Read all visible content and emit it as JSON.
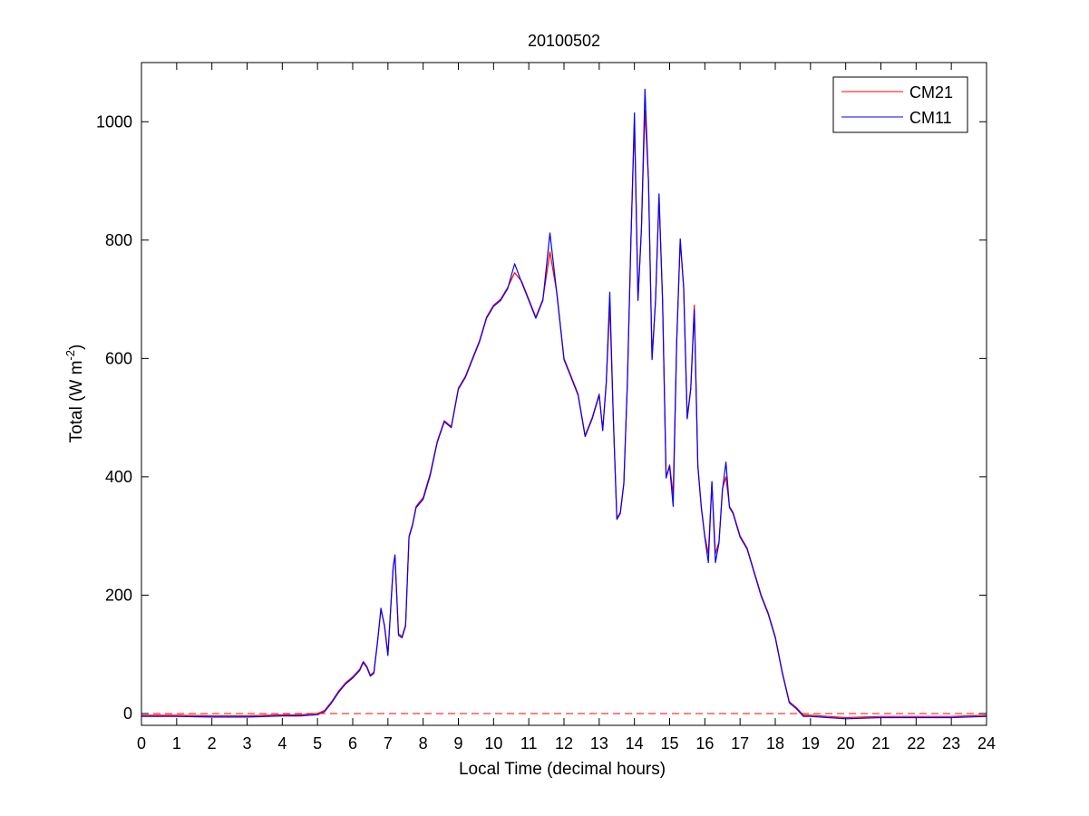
{
  "chart_data": {
    "type": "line",
    "title": "20100502",
    "xlabel": "Local Time (decimal hours)",
    "ylabel": {
      "base": "Total (W m",
      "sup": "-2",
      "close": ")"
    },
    "xlim": [
      0,
      24
    ],
    "ylim": [
      -20,
      1100
    ],
    "xticks": [
      "0",
      "1",
      "2",
      "3",
      "4",
      "5",
      "6",
      "7",
      "8",
      "9",
      "10",
      "11",
      "12",
      "13",
      "14",
      "15",
      "16",
      "17",
      "18",
      "19",
      "20",
      "21",
      "22",
      "23",
      "24"
    ],
    "yticks": [
      "0",
      "200",
      "400",
      "600",
      "800",
      "1000"
    ],
    "grid": false,
    "legend": {
      "position": "top-right",
      "entries": [
        "CM21",
        "CM11"
      ]
    },
    "reference_line": {
      "y": 0,
      "style": "dashed",
      "color": "#ff0000"
    },
    "series": [
      {
        "name": "CM21",
        "color": "#ff0000",
        "x": [
          0,
          1,
          2,
          3,
          4,
          4.5,
          5,
          5.2,
          5.4,
          5.6,
          5.8,
          6,
          6.2,
          6.3,
          6.4,
          6.5,
          6.6,
          6.7,
          6.8,
          6.9,
          7,
          7.1,
          7.15,
          7.2,
          7.3,
          7.4,
          7.5,
          7.6,
          7.7,
          7.8,
          8,
          8.2,
          8.4,
          8.6,
          8.8,
          9,
          9.2,
          9.4,
          9.6,
          9.8,
          10,
          10.2,
          10.4,
          10.6,
          10.8,
          11,
          11.2,
          11.4,
          11.6,
          11.8,
          12,
          12.2,
          12.4,
          12.6,
          12.8,
          13,
          13.1,
          13.2,
          13.3,
          13.4,
          13.5,
          13.6,
          13.7,
          13.8,
          13.9,
          14,
          14.1,
          14.2,
          14.3,
          14.4,
          14.5,
          14.6,
          14.7,
          14.8,
          14.9,
          15,
          15.1,
          15.2,
          15.3,
          15.4,
          15.5,
          15.6,
          15.7,
          15.8,
          15.9,
          16,
          16.1,
          16.2,
          16.3,
          16.4,
          16.5,
          16.6,
          16.7,
          16.8,
          17,
          17.2,
          17.4,
          17.6,
          17.8,
          18,
          18.2,
          18.4,
          18.6,
          18.8,
          19,
          19.5,
          20,
          21,
          22,
          23,
          24
        ],
        "y": [
          -3,
          -3,
          -4,
          -4,
          -2,
          -2,
          0,
          5,
          20,
          38,
          52,
          62,
          75,
          88,
          80,
          65,
          70,
          120,
          175,
          150,
          100,
          200,
          250,
          265,
          135,
          130,
          150,
          300,
          320,
          350,
          365,
          405,
          460,
          495,
          485,
          550,
          570,
          600,
          630,
          670,
          690,
          700,
          720,
          745,
          730,
          700,
          670,
          700,
          780,
          710,
          600,
          570,
          540,
          470,
          500,
          540,
          480,
          560,
          690,
          500,
          330,
          340,
          390,
          560,
          800,
          1000,
          700,
          820,
          1020,
          900,
          600,
          700,
          870,
          700,
          400,
          420,
          370,
          630,
          800,
          720,
          500,
          550,
          690,
          420,
          350,
          300,
          270,
          390,
          270,
          290,
          380,
          400,
          350,
          340,
          300,
          280,
          240,
          200,
          170,
          130,
          70,
          20,
          10,
          -3,
          -3,
          -5,
          -7,
          -5,
          -5,
          -5,
          -3
        ]
      },
      {
        "name": "CM11",
        "color": "#0000ff",
        "x": [
          0,
          1,
          2,
          3,
          4,
          4.5,
          5,
          5.2,
          5.4,
          5.6,
          5.8,
          6,
          6.2,
          6.3,
          6.4,
          6.5,
          6.6,
          6.7,
          6.8,
          6.9,
          7,
          7.1,
          7.15,
          7.2,
          7.3,
          7.4,
          7.5,
          7.6,
          7.7,
          7.8,
          8,
          8.2,
          8.4,
          8.6,
          8.8,
          9,
          9.2,
          9.4,
          9.6,
          9.8,
          10,
          10.2,
          10.4,
          10.6,
          10.8,
          11,
          11.2,
          11.4,
          11.6,
          11.8,
          12,
          12.2,
          12.4,
          12.6,
          12.8,
          13,
          13.1,
          13.2,
          13.3,
          13.4,
          13.5,
          13.6,
          13.7,
          13.8,
          13.9,
          14,
          14.1,
          14.2,
          14.3,
          14.4,
          14.5,
          14.6,
          14.7,
          14.8,
          14.9,
          15,
          15.1,
          15.2,
          15.3,
          15.4,
          15.5,
          15.6,
          15.7,
          15.8,
          15.9,
          16,
          16.1,
          16.2,
          16.3,
          16.4,
          16.5,
          16.6,
          16.7,
          16.8,
          17,
          17.2,
          17.4,
          17.6,
          17.8,
          18,
          18.2,
          18.4,
          18.6,
          18.8,
          19,
          19.5,
          20,
          21,
          22,
          23,
          24
        ],
        "y": [
          -5,
          -5,
          -6,
          -6,
          -4,
          -4,
          -2,
          3,
          18,
          36,
          50,
          60,
          73,
          86,
          78,
          63,
          68,
          118,
          178,
          148,
          98,
          198,
          248,
          268,
          132,
          128,
          148,
          298,
          318,
          348,
          362,
          402,
          458,
          493,
          483,
          548,
          568,
          598,
          628,
          668,
          688,
          698,
          718,
          760,
          728,
          698,
          668,
          698,
          812,
          708,
          598,
          568,
          538,
          468,
          498,
          538,
          478,
          558,
          712,
          498,
          328,
          338,
          388,
          558,
          798,
          1015,
          698,
          818,
          1055,
          898,
          598,
          698,
          878,
          698,
          398,
          418,
          350,
          628,
          802,
          718,
          498,
          548,
          682,
          418,
          348,
          298,
          255,
          392,
          255,
          288,
          378,
          425,
          348,
          338,
          298,
          278,
          238,
          198,
          168,
          128,
          68,
          18,
          8,
          -5,
          -5,
          -7,
          -9,
          -7,
          -7,
          -7,
          -5
        ]
      }
    ]
  }
}
